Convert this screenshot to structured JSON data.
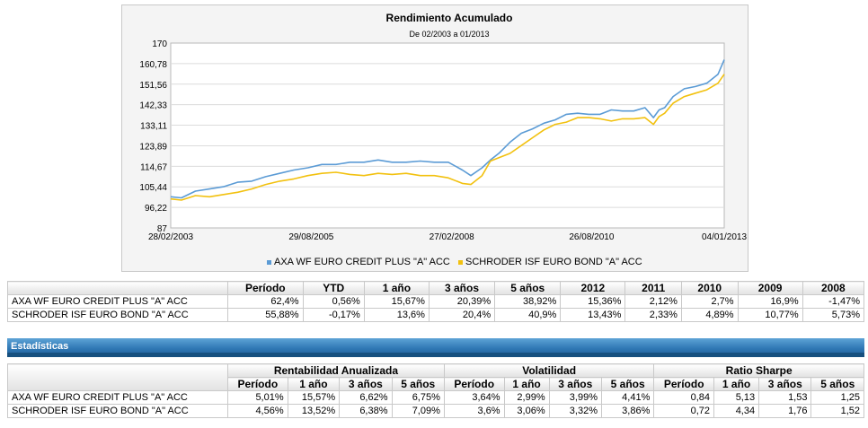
{
  "chart_data": {
    "type": "line",
    "title": "Rendimiento Acumulado",
    "subtitle": "De 02/2003 a 01/2013",
    "ylim": [
      87,
      170
    ],
    "y_ticks": [
      "170",
      "160,78",
      "151,56",
      "142,33",
      "133,11",
      "123,89",
      "114,67",
      "105,44",
      "96,22",
      "87"
    ],
    "x_ticks": [
      "28/02/2003",
      "29/08/2005",
      "27/02/2008",
      "26/08/2010",
      "04/01/2013"
    ],
    "x_tick_years": [
      2003.16,
      2005.66,
      2008.16,
      2010.65,
      2013.01
    ],
    "xlim": [
      2003.16,
      2013.01
    ],
    "series": [
      {
        "name": "AXA WF EURO CREDIT PLUS \"A\" ACC",
        "color": "#5b9bd5",
        "x": [
          2003.16,
          2003.35,
          2003.6,
          2003.85,
          2004.1,
          2004.35,
          2004.6,
          2004.85,
          2005.1,
          2005.35,
          2005.6,
          2005.85,
          2006.1,
          2006.35,
          2006.6,
          2006.85,
          2007.1,
          2007.35,
          2007.6,
          2007.85,
          2008.1,
          2008.35,
          2008.5,
          2008.7,
          2008.85,
          2009.0,
          2009.2,
          2009.4,
          2009.6,
          2009.8,
          2010.0,
          2010.2,
          2010.4,
          2010.6,
          2010.8,
          2011.0,
          2011.2,
          2011.4,
          2011.6,
          2011.75,
          2011.85,
          2011.95,
          2012.1,
          2012.3,
          2012.5,
          2012.7,
          2012.9,
          2013.01
        ],
        "values": [
          101,
          100.5,
          103.5,
          104.5,
          105.5,
          107.5,
          108,
          110,
          111.5,
          113,
          114,
          115.5,
          115.5,
          116.5,
          116.5,
          117.5,
          116.5,
          116.5,
          117,
          116.5,
          116.5,
          113,
          110.5,
          114,
          117.5,
          120.5,
          125.5,
          129.5,
          131.5,
          134,
          135.5,
          138,
          138.5,
          138,
          138,
          140,
          139.5,
          139.5,
          141,
          136.5,
          140,
          141,
          146,
          149.5,
          150.5,
          152,
          156,
          162.5
        ]
      },
      {
        "name": "SCHRODER ISF EURO BOND \"A\" ACC",
        "color": "#f2c10f",
        "x": [
          2003.16,
          2003.35,
          2003.6,
          2003.85,
          2004.1,
          2004.35,
          2004.6,
          2004.85,
          2005.1,
          2005.35,
          2005.6,
          2005.85,
          2006.1,
          2006.35,
          2006.6,
          2006.85,
          2007.1,
          2007.35,
          2007.6,
          2007.85,
          2008.1,
          2008.35,
          2008.5,
          2008.7,
          2008.85,
          2009.0,
          2009.2,
          2009.4,
          2009.6,
          2009.8,
          2010.0,
          2010.2,
          2010.4,
          2010.6,
          2010.8,
          2011.0,
          2011.2,
          2011.4,
          2011.6,
          2011.75,
          2011.85,
          2011.95,
          2012.1,
          2012.3,
          2012.5,
          2012.7,
          2012.9,
          2013.01
        ],
        "values": [
          100,
          99.5,
          101.5,
          101,
          102,
          103,
          104.5,
          106.5,
          108,
          109,
          110.5,
          111.5,
          112,
          111,
          110.5,
          111.5,
          111,
          111.5,
          110.5,
          110.5,
          109.5,
          107,
          106.5,
          110.5,
          117,
          118.5,
          120.5,
          124,
          127.5,
          131,
          133.5,
          134.5,
          136.5,
          136.5,
          136,
          135,
          136,
          136,
          136.5,
          133.5,
          137,
          138.5,
          143,
          146,
          147.5,
          149,
          152,
          156
        ]
      }
    ]
  },
  "returns_table": {
    "headers": [
      "Período",
      "YTD",
      "1 año",
      "3 años",
      "5 años",
      "2012",
      "2011",
      "2010",
      "2009",
      "2008"
    ],
    "rows": [
      {
        "name": "AXA WF EURO CREDIT PLUS \"A\" ACC",
        "values": [
          "62,4%",
          "0,56%",
          "15,67%",
          "20,39%",
          "38,92%",
          "15,36%",
          "2,12%",
          "2,7%",
          "16,9%",
          "-1,47%"
        ]
      },
      {
        "name": "SCHRODER ISF EURO BOND \"A\" ACC",
        "values": [
          "55,88%",
          "-0,17%",
          "13,6%",
          "20,4%",
          "40,9%",
          "13,43%",
          "2,33%",
          "4,89%",
          "10,77%",
          "5,73%"
        ]
      }
    ]
  },
  "stats_header": "Estadísticas",
  "stats_table": {
    "groups": [
      "Rentabilidad Anualizada",
      "Volatilidad",
      "Ratio Sharpe"
    ],
    "subheaders": [
      "Período",
      "1 año",
      "3 años",
      "5 años",
      "Período",
      "1 año",
      "3 años",
      "5 años",
      "Período",
      "1 año",
      "3 años",
      "5 años"
    ],
    "rows": [
      {
        "name": "AXA WF EURO CREDIT PLUS \"A\" ACC",
        "values": [
          "5,01%",
          "15,57%",
          "6,62%",
          "6,75%",
          "3,64%",
          "2,99%",
          "3,99%",
          "4,41%",
          "0,84",
          "5,13",
          "1,53",
          "1,25"
        ]
      },
      {
        "name": "SCHRODER ISF EURO BOND \"A\" ACC",
        "values": [
          "4,56%",
          "13,52%",
          "6,38%",
          "7,09%",
          "3,6%",
          "3,06%",
          "3,32%",
          "3,86%",
          "0,72",
          "4,34",
          "1,76",
          "1,52"
        ]
      }
    ]
  }
}
